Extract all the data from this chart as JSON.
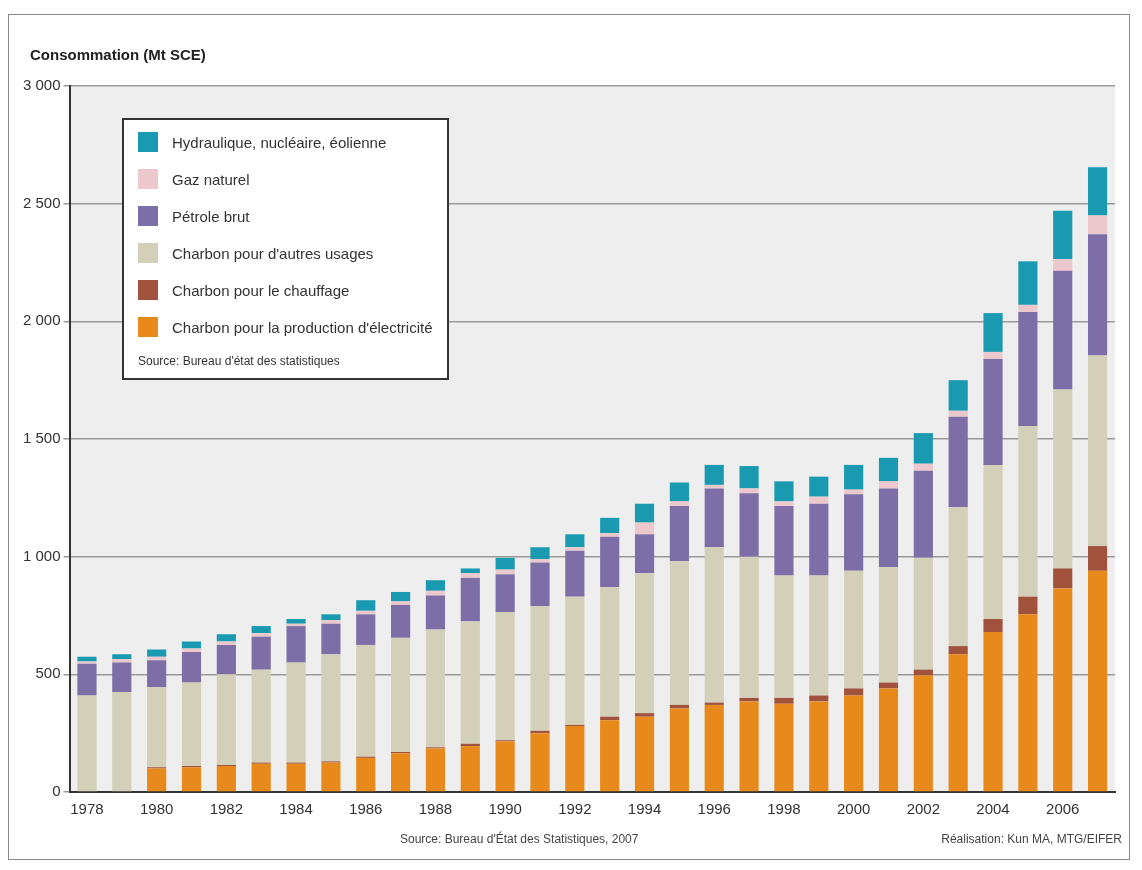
{
  "chart_data": {
    "type": "bar",
    "stacked": true,
    "ylabel": "Consommation (Mt SCE)",
    "categories": [
      "1978",
      null,
      "1980",
      null,
      "1982",
      null,
      "1984",
      null,
      "1986",
      null,
      "1988",
      null,
      "1990",
      null,
      "1992",
      null,
      "1994",
      null,
      "1996",
      null,
      "1998",
      null,
      "2000",
      null,
      "2002",
      null,
      "2004",
      null,
      "2006",
      null
    ],
    "series": [
      {
        "name": "Charbon pour la production d'électricité",
        "color": "#e8891c",
        "values": [
          0,
          0,
          100,
          105,
          110,
          120,
          120,
          125,
          145,
          165,
          185,
          195,
          215,
          250,
          280,
          305,
          320,
          355,
          370,
          385,
          375,
          385,
          410,
          440,
          495,
          585,
          680,
          755,
          865,
          940
        ]
      },
      {
        "name": "Charbon pour le chauffage",
        "color": "#a0523c",
        "values": [
          0,
          0,
          5,
          5,
          5,
          5,
          5,
          5,
          5,
          5,
          5,
          10,
          5,
          10,
          5,
          15,
          15,
          15,
          10,
          15,
          25,
          25,
          30,
          25,
          25,
          35,
          55,
          75,
          85,
          105
        ]
      },
      {
        "name": "Charbon pour d'autres usages",
        "color": "#d4cfb8",
        "values": [
          410,
          425,
          340,
          355,
          385,
          395,
          425,
          455,
          475,
          485,
          500,
          520,
          545,
          530,
          545,
          550,
          595,
          610,
          660,
          600,
          520,
          510,
          500,
          490,
          475,
          590,
          655,
          725,
          760,
          810
        ]
      },
      {
        "name": "Pétrole brut",
        "color": "#7d6ea8",
        "values": [
          135,
          125,
          115,
          130,
          125,
          140,
          155,
          130,
          130,
          140,
          145,
          185,
          160,
          185,
          195,
          215,
          165,
          235,
          250,
          270,
          295,
          305,
          325,
          335,
          370,
          385,
          450,
          485,
          505,
          515
        ]
      },
      {
        "name": "Gaz naturel",
        "color": "#ecc8cc",
        "values": [
          10,
          15,
          15,
          15,
          15,
          15,
          10,
          15,
          15,
          15,
          20,
          20,
          20,
          15,
          15,
          15,
          50,
          20,
          15,
          20,
          20,
          30,
          20,
          30,
          30,
          25,
          30,
          30,
          50,
          80
        ]
      },
      {
        "name": "Hydraulique, nucléaire, éolienne",
        "color": "#1a9ab0",
        "values": [
          20,
          20,
          30,
          30,
          30,
          30,
          20,
          25,
          45,
          40,
          45,
          20,
          50,
          50,
          55,
          65,
          80,
          80,
          85,
          95,
          85,
          85,
          105,
          100,
          130,
          130,
          165,
          185,
          205,
          205
        ]
      }
    ],
    "ylim": [
      0,
      3000
    ],
    "yticks": [
      0,
      500,
      {
        "value": 1000,
        "label": "1 000"
      },
      {
        "value": 1500,
        "label": "1 500"
      },
      {
        "value": 2000,
        "label": "2 000"
      },
      {
        "value": 2500,
        "label": "2 500"
      },
      {
        "value": 3000,
        "label": "3 000"
      }
    ],
    "grid": "y",
    "legend": "top left",
    "annotations": [
      "Source: Bureau d'état des statistiques",
      "Source: Bureau d'État des Statistiques, 2007",
      "Réalisation: Kun MA, MTG/EIFER"
    ]
  }
}
